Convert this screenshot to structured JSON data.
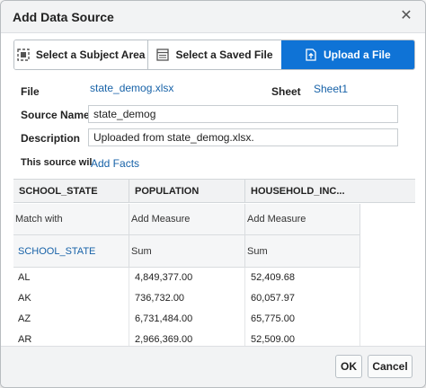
{
  "dialog": {
    "title": "Add Data Source"
  },
  "tabs": [
    {
      "label": "Select a Subject Area",
      "icon": "subject-area-icon",
      "selected": false
    },
    {
      "label": "Select a Saved File",
      "icon": "saved-file-icon",
      "selected": false
    },
    {
      "label": "Upload a File",
      "icon": "upload-file-icon",
      "selected": true
    }
  ],
  "form": {
    "file_label": "File",
    "file_value": "state_demog.xlsx",
    "sheet_label": "Sheet",
    "sheet_value": "Sheet1",
    "source_name_label": "Source Name",
    "source_name_value": "state_demog",
    "description_label": "Description",
    "description_value": "Uploaded from state_demog.xlsx.",
    "source_will_label": "This source wil",
    "source_will_link": "Add Facts"
  },
  "grid": {
    "columns": [
      "SCHOOL_STATE",
      "POPULATION",
      "HOUSEHOLD_INC..."
    ],
    "role_row": [
      "Match with",
      "Add Measure",
      "Add Measure"
    ],
    "agg_row": [
      "SCHOOL_STATE",
      "Sum",
      "Sum"
    ],
    "rows": [
      [
        "AL",
        "4,849,377.00",
        "52,409.68"
      ],
      [
        "AK",
        "736,732.00",
        "60,057.97"
      ],
      [
        "AZ",
        "6,731,484.00",
        "65,775.00"
      ],
      [
        "AR",
        "2,966,369.00",
        "52,509.00"
      ]
    ]
  },
  "footer": {
    "ok_label": "OK",
    "cancel_label": "Cancel"
  },
  "colors": {
    "accent": "#0f73d6",
    "link": "#1762a8"
  }
}
